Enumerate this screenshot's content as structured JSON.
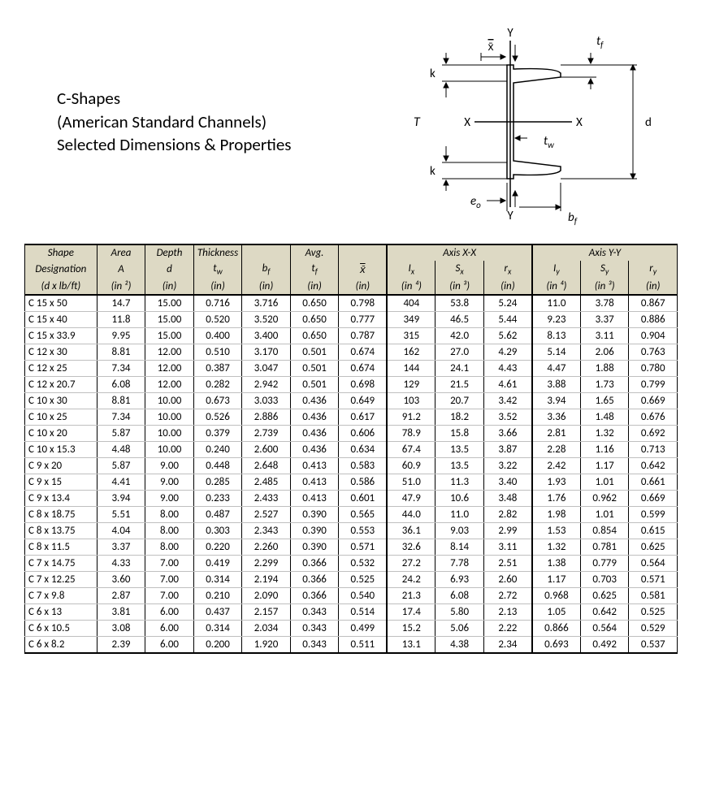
{
  "title": {
    "line1": "C-Shapes",
    "line2": "(American Standard Channels)",
    "line3": "Selected Dimensions & Properties"
  },
  "diagram_labels": {
    "Y_top": "Y",
    "Y_bot": "Y",
    "xbar": "x̄",
    "tf": "t",
    "tf_sub": "f",
    "k_top": "k",
    "k_bot": "k",
    "T": "T",
    "d": "d",
    "X_left": "X",
    "X_right": "X",
    "tw": "t",
    "tw_sub": "w",
    "eo": "e",
    "eo_sub": "o",
    "bf": "b",
    "bf_sub": "f"
  },
  "headers": {
    "shape": "Shape",
    "designation": "Designation",
    "dxlb": "(d x lb/ft)",
    "area": "Area",
    "A": "A",
    "in2": "(in ²)",
    "depth": "Depth",
    "d": "d",
    "in": "(in)",
    "thickness": "Thickness",
    "tw": "t",
    "tw_sub": "w",
    "bf": "b",
    "bf_sub": "f",
    "avg": "Avg.",
    "tf": "t",
    "tf_sub": "f",
    "xbar": "x̄",
    "axisXX": "Axis X-X",
    "axisYY": "Axis Y-Y",
    "Ix": "I",
    "Ix_sub": "x",
    "in4": "(in ⁴)",
    "Sx": "S",
    "Sx_sub": "x",
    "in3": "(in ³)",
    "rx": "r",
    "rx_sub": "x",
    "Iy": "I",
    "Iy_sub": "y",
    "Sy": "S",
    "Sy_sub": "y",
    "ry": "r",
    "ry_sub": "y"
  },
  "rows": [
    [
      "C 15 x 50",
      "14.7",
      "15.00",
      "0.716",
      "3.716",
      "0.650",
      "0.798",
      "404",
      "53.8",
      "5.24",
      "11.0",
      "3.78",
      "0.867"
    ],
    [
      "C 15 x 40",
      "11.8",
      "15.00",
      "0.520",
      "3.520",
      "0.650",
      "0.777",
      "349",
      "46.5",
      "5.44",
      "9.23",
      "3.37",
      "0.886"
    ],
    [
      "C 15 x 33.9",
      "9.95",
      "15.00",
      "0.400",
      "3.400",
      "0.650",
      "0.787",
      "315",
      "42.0",
      "5.62",
      "8.13",
      "3.11",
      "0.904"
    ],
    [
      "C 12 x 30",
      "8.81",
      "12.00",
      "0.510",
      "3.170",
      "0.501",
      "0.674",
      "162",
      "27.0",
      "4.29",
      "5.14",
      "2.06",
      "0.763"
    ],
    [
      "C 12 x 25",
      "7.34",
      "12.00",
      "0.387",
      "3.047",
      "0.501",
      "0.674",
      "144",
      "24.1",
      "4.43",
      "4.47",
      "1.88",
      "0.780"
    ],
    [
      "C 12 x 20.7",
      "6.08",
      "12.00",
      "0.282",
      "2.942",
      "0.501",
      "0.698",
      "129",
      "21.5",
      "4.61",
      "3.88",
      "1.73",
      "0.799"
    ],
    [
      "C 10 x 30",
      "8.81",
      "10.00",
      "0.673",
      "3.033",
      "0.436",
      "0.649",
      "103",
      "20.7",
      "3.42",
      "3.94",
      "1.65",
      "0.669"
    ],
    [
      "C 10 x 25",
      "7.34",
      "10.00",
      "0.526",
      "2.886",
      "0.436",
      "0.617",
      "91.2",
      "18.2",
      "3.52",
      "3.36",
      "1.48",
      "0.676"
    ],
    [
      "C 10 x 20",
      "5.87",
      "10.00",
      "0.379",
      "2.739",
      "0.436",
      "0.606",
      "78.9",
      "15.8",
      "3.66",
      "2.81",
      "1.32",
      "0.692"
    ],
    [
      "C 10 x 15.3",
      "4.48",
      "10.00",
      "0.240",
      "2.600",
      "0.436",
      "0.634",
      "67.4",
      "13.5",
      "3.87",
      "2.28",
      "1.16",
      "0.713"
    ],
    [
      "C 9 x 20",
      "5.87",
      "9.00",
      "0.448",
      "2.648",
      "0.413",
      "0.583",
      "60.9",
      "13.5",
      "3.22",
      "2.42",
      "1.17",
      "0.642"
    ],
    [
      "C 9 x 15",
      "4.41",
      "9.00",
      "0.285",
      "2.485",
      "0.413",
      "0.586",
      "51.0",
      "11.3",
      "3.40",
      "1.93",
      "1.01",
      "0.661"
    ],
    [
      "C 9 x 13.4",
      "3.94",
      "9.00",
      "0.233",
      "2.433",
      "0.413",
      "0.601",
      "47.9",
      "10.6",
      "3.48",
      "1.76",
      "0.962",
      "0.669"
    ],
    [
      "C 8 x 18.75",
      "5.51",
      "8.00",
      "0.487",
      "2.527",
      "0.390",
      "0.565",
      "44.0",
      "11.0",
      "2.82",
      "1.98",
      "1.01",
      "0.599"
    ],
    [
      "C 8 x 13.75",
      "4.04",
      "8.00",
      "0.303",
      "2.343",
      "0.390",
      "0.553",
      "36.1",
      "9.03",
      "2.99",
      "1.53",
      "0.854",
      "0.615"
    ],
    [
      "C 8 x 11.5",
      "3.37",
      "8.00",
      "0.220",
      "2.260",
      "0.390",
      "0.571",
      "32.6",
      "8.14",
      "3.11",
      "1.32",
      "0.781",
      "0.625"
    ],
    [
      "C 7 x 14.75",
      "4.33",
      "7.00",
      "0.419",
      "2.299",
      "0.366",
      "0.532",
      "27.2",
      "7.78",
      "2.51",
      "1.38",
      "0.779",
      "0.564"
    ],
    [
      "C 7 x 12.25",
      "3.60",
      "7.00",
      "0.314",
      "2.194",
      "0.366",
      "0.525",
      "24.2",
      "6.93",
      "2.60",
      "1.17",
      "0.703",
      "0.571"
    ],
    [
      "C 7 x 9.8",
      "2.87",
      "7.00",
      "0.210",
      "2.090",
      "0.366",
      "0.540",
      "21.3",
      "6.08",
      "2.72",
      "0.968",
      "0.625",
      "0.581"
    ],
    [
      "C 6 x 13",
      "3.81",
      "6.00",
      "0.437",
      "2.157",
      "0.343",
      "0.514",
      "17.4",
      "5.80",
      "2.13",
      "1.05",
      "0.642",
      "0.525"
    ],
    [
      "C 6 x 10.5",
      "3.08",
      "6.00",
      "0.314",
      "2.034",
      "0.343",
      "0.499",
      "15.2",
      "5.06",
      "2.22",
      "0.866",
      "0.564",
      "0.529"
    ],
    [
      "C 6 x 8.2",
      "2.39",
      "6.00",
      "0.200",
      "1.920",
      "0.343",
      "0.511",
      "13.1",
      "4.38",
      "2.34",
      "0.693",
      "0.492",
      "0.537"
    ]
  ],
  "style": {
    "header_bg": "#ddd9c4",
    "border_color": "#000000",
    "row_border": "#bfbfbf",
    "font_size_body": 13,
    "font_size_title": 21
  }
}
